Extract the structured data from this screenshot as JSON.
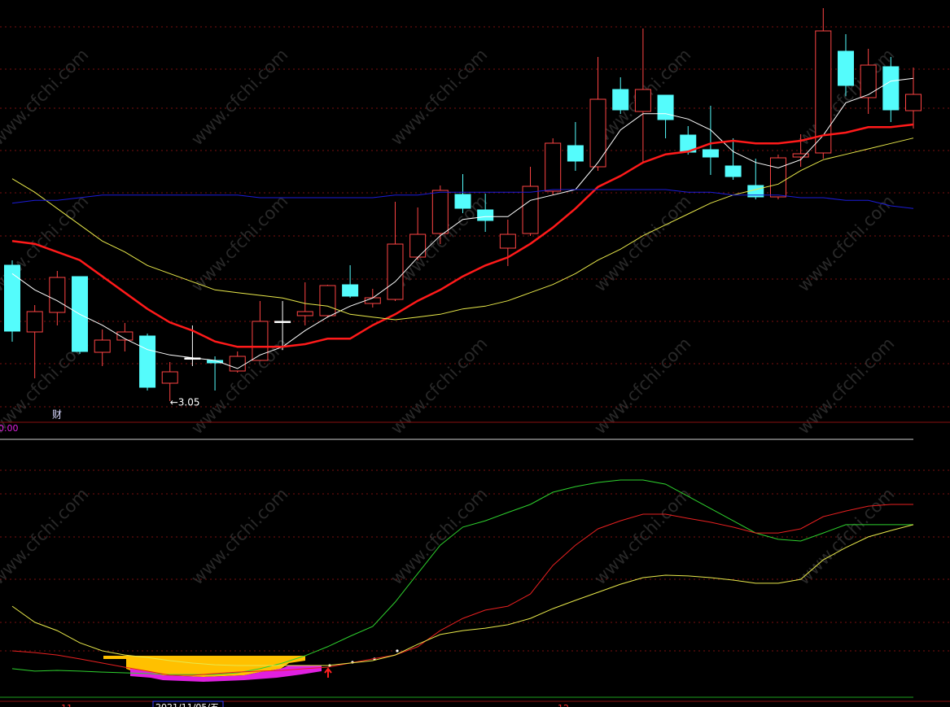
{
  "chart_data": [
    {
      "type": "candlestick",
      "open": [
        3.551,
        3.305,
        3.377,
        3.509,
        3.23,
        3.275,
        3.29,
        3.116,
        3.209,
        3.2,
        3.161,
        3.2,
        3.344,
        3.365,
        3.365,
        3.479,
        3.41,
        3.425,
        3.581,
        3.668,
        3.812,
        3.755,
        3.614,
        3.668,
        3.824,
        3.992,
        3.914,
        4.199,
        4.118,
        4.178,
        4.031,
        3.977,
        3.917,
        3.845,
        3.803,
        3.95,
        3.965,
        4.34,
        4.169,
        4.283,
        4.121
      ],
      "high": [
        3.569,
        3.404,
        3.53,
        3.509,
        3.314,
        3.338,
        3.299,
        3.194,
        3.329,
        3.215,
        3.233,
        3.419,
        3.419,
        3.488,
        3.479,
        3.551,
        3.464,
        3.785,
        3.764,
        3.845,
        3.887,
        3.815,
        3.719,
        3.914,
        4.019,
        4.079,
        4.319,
        4.244,
        4.424,
        4.178,
        4.064,
        4.139,
        4.019,
        3.944,
        3.959,
        4.034,
        4.499,
        4.403,
        4.349,
        4.319,
        4.28
      ],
      "low": [
        3.269,
        3.134,
        3.329,
        3.224,
        3.179,
        3.233,
        3.089,
        3.05,
        3.179,
        3.089,
        3.155,
        3.2,
        3.239,
        3.329,
        3.359,
        3.431,
        3.395,
        3.419,
        3.569,
        3.629,
        3.743,
        3.674,
        3.548,
        3.659,
        3.809,
        3.899,
        3.899,
        4.109,
        3.929,
        4.019,
        3.959,
        3.884,
        3.866,
        3.794,
        3.794,
        3.914,
        3.944,
        4.174,
        4.109,
        4.079,
        4.055
      ],
      "close": [
        3.308,
        3.38,
        3.506,
        3.233,
        3.275,
        3.305,
        3.101,
        3.158,
        3.209,
        3.191,
        3.215,
        3.344,
        3.344,
        3.38,
        3.476,
        3.437,
        3.431,
        3.629,
        3.665,
        3.827,
        3.761,
        3.716,
        3.665,
        3.842,
        4.001,
        3.935,
        4.163,
        4.124,
        4.199,
        4.088,
        3.968,
        3.95,
        3.878,
        3.803,
        3.947,
        3.962,
        4.415,
        4.214,
        4.289,
        4.124,
        4.181
      ],
      "up_color": "#ff4444",
      "down_color": "#54fcfc",
      "flat_color": "#ffffff",
      "ylim": [
        2.972,
        4.529
      ],
      "series": [
        {
          "color": "#ffffff",
          "width": 1,
          "values": [
            3.52,
            3.46,
            3.42,
            3.37,
            3.33,
            3.28,
            3.24,
            3.22,
            3.21,
            3.2,
            3.17,
            3.22,
            3.25,
            3.31,
            3.36,
            3.4,
            3.43,
            3.49,
            3.58,
            3.66,
            3.72,
            3.73,
            3.73,
            3.79,
            3.81,
            3.83,
            3.93,
            4.05,
            4.11,
            4.11,
            4.09,
            4.05,
            3.97,
            3.93,
            3.91,
            3.94,
            4.03,
            4.15,
            4.18,
            4.23,
            4.24
          ]
        },
        {
          "color": "#ff1a1a",
          "width": 2.5,
          "values": [
            3.64,
            3.63,
            3.6,
            3.57,
            3.51,
            3.45,
            3.39,
            3.34,
            3.31,
            3.27,
            3.25,
            3.25,
            3.25,
            3.26,
            3.28,
            3.28,
            3.33,
            3.37,
            3.42,
            3.46,
            3.51,
            3.55,
            3.58,
            3.63,
            3.69,
            3.76,
            3.84,
            3.88,
            3.93,
            3.96,
            3.97,
            4.0,
            4.01,
            4.0,
            4.0,
            4.01,
            4.03,
            4.04,
            4.06,
            4.06,
            4.07
          ]
        },
        {
          "color": "#e8e84a",
          "width": 1,
          "values": [
            3.87,
            3.82,
            3.76,
            3.7,
            3.64,
            3.6,
            3.55,
            3.52,
            3.49,
            3.46,
            3.45,
            3.44,
            3.43,
            3.41,
            3.4,
            3.37,
            3.36,
            3.35,
            3.36,
            3.37,
            3.39,
            3.4,
            3.42,
            3.45,
            3.48,
            3.52,
            3.57,
            3.61,
            3.66,
            3.7,
            3.74,
            3.78,
            3.81,
            3.83,
            3.85,
            3.9,
            3.94,
            3.96,
            3.98,
            4.0,
            4.02
          ]
        },
        {
          "color": "#1c1cd8",
          "width": 1,
          "values": [
            3.78,
            3.79,
            3.79,
            3.8,
            3.81,
            3.81,
            3.81,
            3.81,
            3.81,
            3.81,
            3.81,
            3.8,
            3.8,
            3.8,
            3.8,
            3.8,
            3.8,
            3.81,
            3.81,
            3.82,
            3.82,
            3.82,
            3.82,
            3.82,
            3.83,
            3.83,
            3.83,
            3.83,
            3.83,
            3.83,
            3.82,
            3.82,
            3.81,
            3.81,
            3.81,
            3.8,
            3.8,
            3.79,
            3.79,
            3.77,
            3.76
          ]
        }
      ],
      "annotation": {
        "text": "←3.05",
        "value": 3.05
      },
      "marker": "财"
    },
    {
      "type": "line",
      "label": "0.00",
      "ylim": [
        0,
        100
      ],
      "series": [
        {
          "color": "#2ed12e",
          "width": 1,
          "values": [
            7.7,
            6.7,
            7.0,
            6.7,
            6.3,
            6.0,
            5.7,
            5.3,
            5.3,
            5.3,
            6.0,
            7.7,
            10.0,
            13.0,
            16.7,
            21.0,
            25.0,
            35.0,
            46.7,
            58.3,
            65.7,
            68.3,
            71.7,
            75.0,
            80.0,
            82.3,
            84.0,
            85.0,
            85.0,
            83.3,
            78.3,
            73.3,
            68.3,
            63.3,
            60.7,
            60.0,
            63.3,
            66.7,
            66.7,
            66.7,
            66.7
          ]
        },
        {
          "color": "#e82020",
          "width": 1,
          "values": [
            15.0,
            14.3,
            13.3,
            11.7,
            10.0,
            8.3,
            6.7,
            5.0,
            5.0,
            5.7,
            6.3,
            6.7,
            7.0,
            7.7,
            8.3,
            10.0,
            11.7,
            13.3,
            16.7,
            23.3,
            28.3,
            31.7,
            33.3,
            38.3,
            50.0,
            58.3,
            65.0,
            68.3,
            71.0,
            71.0,
            69.3,
            67.7,
            65.7,
            63.3,
            63.3,
            65.0,
            70.0,
            72.3,
            74.3,
            75.0,
            75.0
          ]
        },
        {
          "color": "#e8e84a",
          "width": 1,
          "values": [
            33.3,
            26.7,
            23.3,
            18.3,
            15.0,
            13.3,
            12.3,
            11.0,
            10.0,
            9.3,
            9.0,
            9.0,
            9.0,
            9.0,
            9.0,
            10.0,
            11.0,
            13.3,
            17.7,
            21.7,
            23.3,
            24.3,
            25.7,
            28.3,
            32.3,
            35.7,
            39.0,
            42.3,
            45.0,
            46.0,
            45.7,
            45.0,
            44.0,
            42.7,
            42.7,
            44.3,
            52.3,
            57.3,
            61.7,
            64.3,
            66.7
          ]
        }
      ],
      "date": "2021/11/05/五",
      "month_labels": [
        "11",
        "12"
      ]
    }
  ],
  "watermark": "www.cfchi.com"
}
